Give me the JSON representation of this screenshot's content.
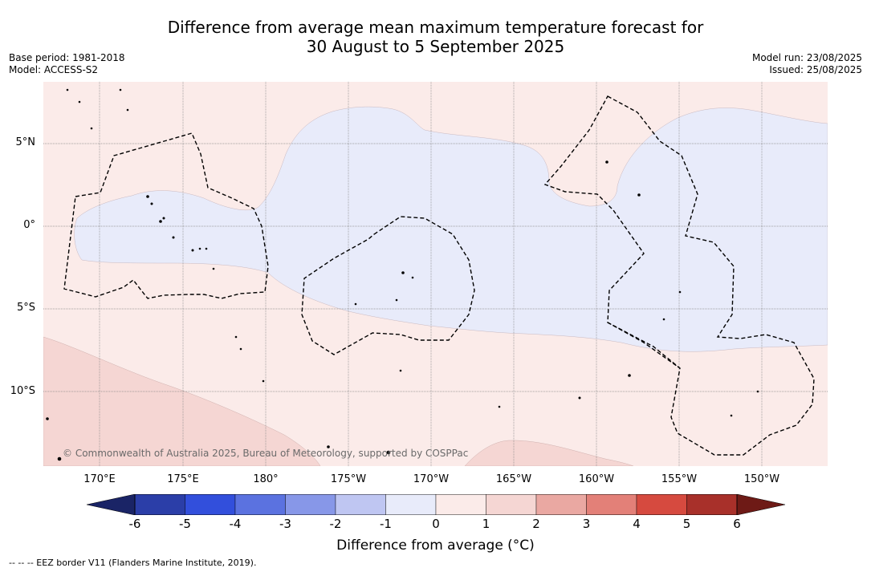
{
  "title": {
    "line1": "Difference from average mean maximum temperature forecast for",
    "line2": "30 August to 5 September 2025"
  },
  "meta": {
    "base_period": "Base period: 1981-2018",
    "model": "Model: ACCESS-S2",
    "model_run": "Model run: 23/08/2025",
    "issued": "Issued: 25/08/2025"
  },
  "map": {
    "lat_labels": [
      "5°N",
      "0°",
      "5°S",
      "10°S"
    ],
    "lon_labels": [
      "170°E",
      "175°E",
      "180°",
      "175°W",
      "170°W",
      "165°W",
      "160°W",
      "155°W",
      "150°W"
    ],
    "copyright": "© Commonwealth of Australia 2025, Bureau of Meteorology, supported by COSPPac",
    "colors": {
      "neg_0_1": "#e8ebfa",
      "pos_0_1": "#fbebe9",
      "pos_1_2": "#f5d6d3",
      "grid": "#888888",
      "eez": "#000000"
    }
  },
  "colorbar": {
    "label": "Difference from average (°C)",
    "ticks": [
      "-6",
      "-5",
      "-4",
      "-3",
      "-2",
      "-1",
      "0",
      "1",
      "2",
      "3",
      "4",
      "5",
      "6"
    ],
    "under_color": "#1a2466",
    "over_color": "#6e1a16",
    "colors": [
      "#2b3ea8",
      "#324fdc",
      "#5b72e0",
      "#8797e8",
      "#bfc6f2",
      "#e8ebfa",
      "#fbebe9",
      "#f5d6d3",
      "#eaa8a2",
      "#e38078",
      "#d64a3f",
      "#a8302a"
    ]
  },
  "legend": {
    "eez": "--  --  -- EEZ border V11 (Flanders Marine Institute, 2019)."
  }
}
